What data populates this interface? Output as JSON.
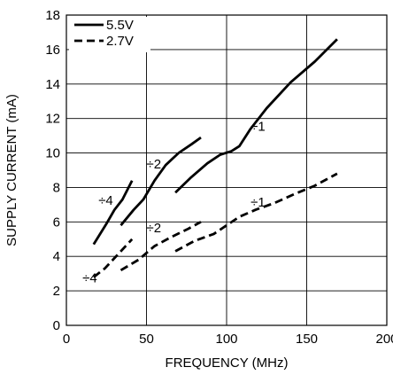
{
  "chart_data": {
    "type": "line",
    "title": "",
    "xlabel": "FREQUENCY (MHz)",
    "ylabel": "SUPPLY CURRENT (mA)",
    "xlim": [
      0,
      200
    ],
    "ylim": [
      0,
      18
    ],
    "x_ticks": [
      0,
      50,
      100,
      150,
      200
    ],
    "y_ticks": [
      0,
      2,
      4,
      6,
      8,
      10,
      12,
      14,
      16,
      18
    ],
    "x_tick_labels": [
      "0",
      "50",
      "100",
      "150",
      "200"
    ],
    "y_tick_labels": [
      "0",
      "2",
      "4",
      "6",
      "8",
      "10",
      "12",
      "14",
      "16",
      "18"
    ],
    "grid": true,
    "legend_position": "top-left",
    "legend": [
      {
        "name": "5.5V",
        "style": "solid"
      },
      {
        "name": "2.7V",
        "style": "dashed"
      }
    ],
    "series": [
      {
        "name": "5.5V",
        "segment": "÷4",
        "style": "solid",
        "points": [
          [
            17,
            4.7
          ],
          [
            25,
            5.9
          ],
          [
            30,
            6.7
          ],
          [
            35,
            7.3
          ],
          [
            41,
            8.4
          ]
        ]
      },
      {
        "name": "5.5V",
        "segment": "÷2",
        "style": "solid",
        "points": [
          [
            34,
            5.8
          ],
          [
            42,
            6.7
          ],
          [
            48,
            7.3
          ],
          [
            55,
            8.4
          ],
          [
            62,
            9.3
          ],
          [
            70,
            10.0
          ],
          [
            78,
            10.5
          ],
          [
            84,
            10.9
          ]
        ]
      },
      {
        "name": "5.5V",
        "segment": "÷1",
        "style": "solid",
        "points": [
          [
            68,
            7.7
          ],
          [
            78,
            8.6
          ],
          [
            88,
            9.4
          ],
          [
            96,
            9.9
          ],
          [
            103,
            10.1
          ],
          [
            108,
            10.4
          ],
          [
            115,
            11.4
          ],
          [
            125,
            12.6
          ],
          [
            140,
            14.1
          ],
          [
            155,
            15.3
          ],
          [
            169,
            16.6
          ]
        ]
      },
      {
        "name": "2.7V",
        "segment": "÷4",
        "style": "dashed",
        "points": [
          [
            17,
            2.8
          ],
          [
            24,
            3.3
          ],
          [
            32,
            4.1
          ],
          [
            41,
            5.0
          ]
        ]
      },
      {
        "name": "2.7V",
        "segment": "÷2",
        "style": "dashed",
        "points": [
          [
            34,
            3.2
          ],
          [
            45,
            3.8
          ],
          [
            55,
            4.6
          ],
          [
            65,
            5.1
          ],
          [
            76,
            5.6
          ],
          [
            84,
            6.0
          ]
        ]
      },
      {
        "name": "2.7V",
        "segment": "÷1",
        "style": "dashed",
        "points": [
          [
            68,
            4.3
          ],
          [
            80,
            4.9
          ],
          [
            92,
            5.3
          ],
          [
            100,
            5.8
          ],
          [
            108,
            6.3
          ],
          [
            118,
            6.7
          ],
          [
            130,
            7.1
          ],
          [
            142,
            7.6
          ],
          [
            155,
            8.1
          ],
          [
            169,
            8.8
          ]
        ]
      }
    ],
    "annotations": [
      {
        "text": "÷4",
        "x": 20,
        "y": 7.0
      },
      {
        "text": "÷2",
        "x": 50,
        "y": 9.1
      },
      {
        "text": "÷1",
        "x": 115,
        "y": 11.3
      },
      {
        "text": "÷2",
        "x": 50,
        "y": 5.4
      },
      {
        "text": "÷1",
        "x": 115,
        "y": 6.9
      },
      {
        "text": "÷4",
        "x": 10,
        "y": 2.5
      }
    ]
  }
}
